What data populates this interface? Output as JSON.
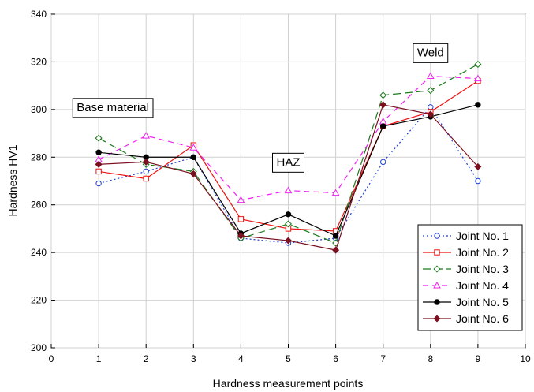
{
  "chart_data": {
    "type": "line",
    "title": "",
    "xlabel": "Hardness measurement points",
    "ylabel": "Hardness HV1",
    "xlim": [
      0,
      10
    ],
    "ylim": [
      200,
      340
    ],
    "x_ticks": [
      0,
      1,
      2,
      3,
      4,
      5,
      6,
      7,
      8,
      9,
      10
    ],
    "y_ticks": [
      200,
      220,
      240,
      260,
      280,
      300,
      320,
      340
    ],
    "grid": true,
    "legend_position": "bottom-right",
    "x": [
      1,
      2,
      3,
      4,
      5,
      6,
      7,
      8,
      9
    ],
    "series": [
      {
        "name": "Joint No. 1",
        "color": "#1f3fd6",
        "dash": "2,3",
        "marker": "circle-open",
        "values": [
          269,
          274,
          280,
          246,
          244,
          246,
          278,
          301,
          270
        ]
      },
      {
        "name": "Joint No. 2",
        "color": "#ee1111",
        "dash": "",
        "marker": "square-open",
        "values": [
          274,
          271,
          285,
          254,
          250,
          249,
          293,
          299,
          312
        ]
      },
      {
        "name": "Joint No. 3",
        "color": "#1a7a1a",
        "dash": "10,5",
        "marker": "diamond-open",
        "values": [
          288,
          277,
          274,
          246,
          252,
          244,
          306,
          308,
          319
        ]
      },
      {
        "name": "Joint No. 4",
        "color": "#f020f0",
        "dash": "7,5",
        "marker": "triangle-open",
        "values": [
          279,
          289,
          284,
          262,
          266,
          265,
          295,
          314,
          313
        ]
      },
      {
        "name": "Joint No. 5",
        "color": "#000000",
        "dash": "",
        "marker": "circle-filled",
        "values": [
          282,
          280,
          280,
          248,
          256,
          247,
          293,
          297,
          302
        ]
      },
      {
        "name": "Joint No. 6",
        "color": "#7a1020",
        "dash": "",
        "marker": "diamond-filled",
        "values": [
          277,
          278,
          273,
          247,
          245,
          241,
          302,
          298,
          276
        ]
      }
    ],
    "annotations": [
      {
        "text": "Base material",
        "x": 1.3,
        "y": 301
      },
      {
        "text": "HAZ",
        "x": 5.0,
        "y": 278
      },
      {
        "text": "Weld",
        "x": 8.0,
        "y": 324
      }
    ]
  }
}
